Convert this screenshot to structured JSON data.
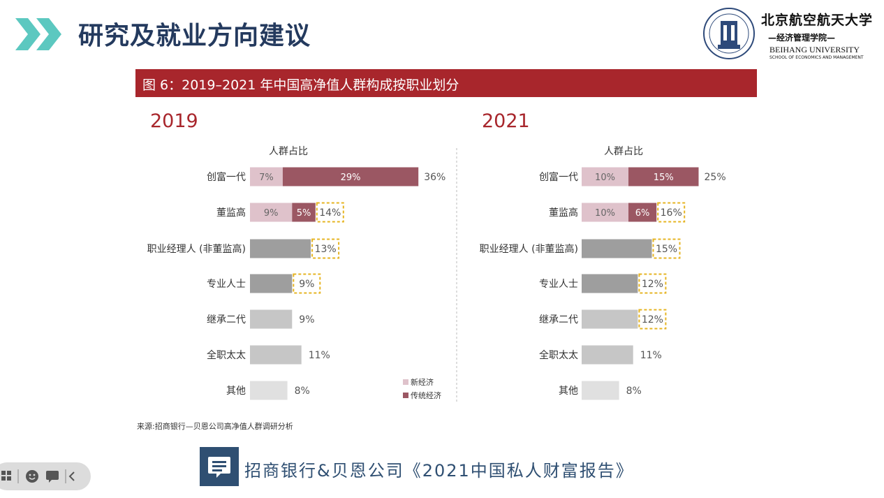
{
  "header": {
    "title": "研究及就业方向建议"
  },
  "logo": {
    "cn_name": "北京航空航天大学",
    "school_cn": "—经济管理学院—",
    "en_name": "BEIHANG UNIVERSITY",
    "en_school": "SCHOOL OF ECONOMICS AND MANAGEMENT"
  },
  "figure": {
    "title": "图 6：2019–2021 年中国高净值人群构成按职业划分"
  },
  "chart_data": {
    "type": "bar",
    "stacked": true,
    "orientation": "horizontal",
    "categories": [
      "创富一代",
      "董监高",
      "职业经理人（非董监高）",
      "专业人士",
      "继承二代",
      "全职太太",
      "其他"
    ],
    "legend": {
      "items": [
        "新经济",
        "传统经济"
      ],
      "placement": "bottom-right of left panel"
    },
    "colors": {
      "new_economy": "#dfc2cb",
      "traditional": "#9b5763",
      "other_dark": "#9e9e9e",
      "other_mid": "#c6c6c6",
      "other_light": "#e0e0e0",
      "highlight": "#e6b422"
    },
    "panels": [
      {
        "year": "2019",
        "axis_title": "人群占比",
        "category_labels": [
          "创富一代",
          "董监高",
          "职业经理人 (非董监高)",
          "专业人士",
          "继承二代",
          "全职太太",
          "其他"
        ],
        "segments": [
          {
            "new": 7,
            "traditional": 29
          },
          {
            "new": 9,
            "traditional": 5
          },
          {
            "value": 13
          },
          {
            "value": 9
          },
          {
            "value": 9
          },
          {
            "value": 11
          },
          {
            "value": 8
          }
        ],
        "totals": [
          36,
          14,
          13,
          9,
          9,
          11,
          8
        ],
        "highlighted": [
          false,
          true,
          true,
          true,
          false,
          false,
          false
        ]
      },
      {
        "year": "2021",
        "axis_title": "人群占比",
        "category_labels": [
          "创富一代",
          "董监高",
          "职业经理人 (非董监高)",
          "专业人士",
          "继承二代",
          "全职太太",
          "其他"
        ],
        "segments": [
          {
            "new": 10,
            "traditional": 15
          },
          {
            "new": 10,
            "traditional": 6
          },
          {
            "value": 15
          },
          {
            "value": 12
          },
          {
            "value": 12
          },
          {
            "value": 11
          },
          {
            "value": 8
          }
        ],
        "totals": [
          25,
          16,
          15,
          12,
          12,
          11,
          8
        ],
        "highlighted": [
          false,
          true,
          true,
          true,
          true,
          false,
          false
        ]
      }
    ]
  },
  "source": "来源:招商银行—贝恩公司高净值人群调研分析",
  "footer": {
    "text": "招商银行&贝恩公司《2021中国私人财富报告》"
  },
  "toolbar": {
    "icons": [
      "grid-icon",
      "smile-icon",
      "chat-icon",
      "chevron-left-icon"
    ]
  }
}
